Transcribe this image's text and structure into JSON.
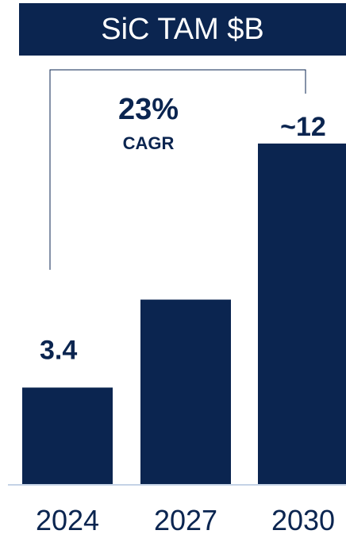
{
  "chart_data": {
    "type": "bar",
    "title": "SiC TAM $B",
    "categories": [
      "2024",
      "2027",
      "2030"
    ],
    "values": [
      3.4,
      6.5,
      12
    ],
    "data_labels": [
      "3.4",
      "",
      "~12"
    ],
    "annotation": {
      "value": "23%",
      "label": "CAGR"
    },
    "xlabel": "",
    "ylabel": "",
    "ylim": [
      0,
      12.5
    ],
    "grid": false,
    "colors": {
      "bar": "#0b2550",
      "title_bg": "#0b2550",
      "title_text": "#ffffff",
      "baseline": "#c5d3e6"
    }
  }
}
